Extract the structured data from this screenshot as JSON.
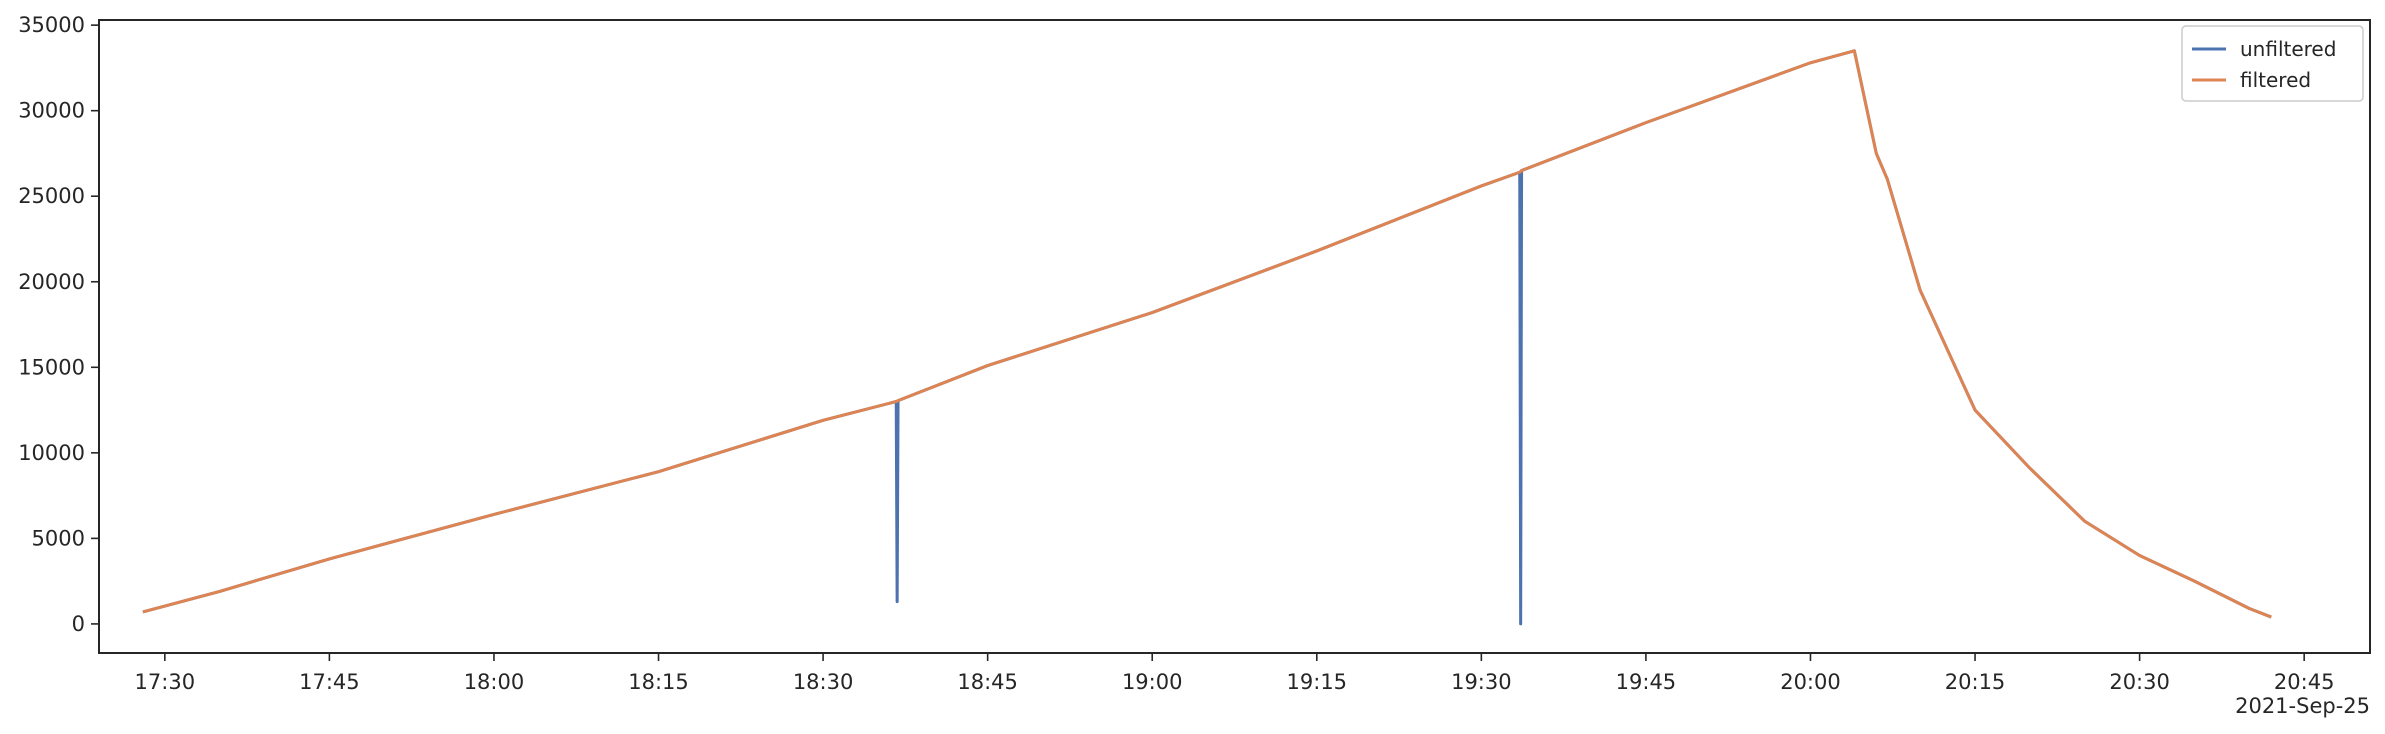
{
  "chart_data": {
    "type": "line",
    "title": "",
    "xlabel": "",
    "ylabel": "",
    "x_axis": {
      "type": "time",
      "range": [
        "17:24",
        "20:51"
      ],
      "ticks": [
        "17:30",
        "17:45",
        "18:00",
        "18:15",
        "18:30",
        "18:45",
        "19:00",
        "19:15",
        "19:30",
        "19:45",
        "20:00",
        "20:15",
        "20:30",
        "20:45"
      ],
      "offset_label": "2021-Sep-25"
    },
    "y_axis": {
      "range": [
        -1700,
        35300
      ],
      "ticks": [
        0,
        5000,
        10000,
        15000,
        20000,
        25000,
        30000,
        35000
      ]
    },
    "grid": false,
    "legend": {
      "placement": "top-right"
    },
    "series": [
      {
        "name": "unfiltered",
        "color": "#4c72b0",
        "points": [
          [
            "17:28",
            700
          ],
          [
            "17:35",
            1900
          ],
          [
            "17:45",
            3800
          ],
          [
            "18:00",
            6400
          ],
          [
            "18:15",
            8900
          ],
          [
            "18:30",
            11900
          ],
          [
            "18:36:40",
            13000
          ],
          [
            "18:36:45",
            1300
          ],
          [
            "18:36:50",
            13050
          ],
          [
            "18:45",
            15100
          ],
          [
            "19:00",
            18200
          ],
          [
            "19:15",
            21800
          ],
          [
            "19:30",
            25600
          ],
          [
            "19:33:30",
            26400
          ],
          [
            "19:33:35",
            0
          ],
          [
            "19:33:40",
            26500
          ],
          [
            "19:45",
            29300
          ],
          [
            "20:00",
            32800
          ],
          [
            "20:04",
            33500
          ],
          [
            "20:06",
            27500
          ],
          [
            "20:07",
            26000
          ],
          [
            "20:10",
            19500
          ],
          [
            "20:15",
            12500
          ],
          [
            "20:20",
            9100
          ],
          [
            "20:25",
            6000
          ],
          [
            "20:30",
            4000
          ],
          [
            "20:35",
            2500
          ],
          [
            "20:40",
            900
          ],
          [
            "20:42",
            400
          ]
        ]
      },
      {
        "name": "filtered",
        "color": "#dd8452",
        "points": [
          [
            "17:28",
            700
          ],
          [
            "17:35",
            1900
          ],
          [
            "17:45",
            3800
          ],
          [
            "18:00",
            6400
          ],
          [
            "18:15",
            8900
          ],
          [
            "18:30",
            11900
          ],
          [
            "18:36:40",
            13000
          ],
          [
            "18:36:50",
            13050
          ],
          [
            "18:45",
            15100
          ],
          [
            "19:00",
            18200
          ],
          [
            "19:15",
            21800
          ],
          [
            "19:30",
            25600
          ],
          [
            "19:33:30",
            26400
          ],
          [
            "19:33:40",
            26500
          ],
          [
            "19:45",
            29300
          ],
          [
            "20:00",
            32800
          ],
          [
            "20:04",
            33500
          ],
          [
            "20:06",
            27500
          ],
          [
            "20:07",
            26000
          ],
          [
            "20:10",
            19500
          ],
          [
            "20:15",
            12500
          ],
          [
            "20:20",
            9100
          ],
          [
            "20:25",
            6000
          ],
          [
            "20:30",
            4000
          ],
          [
            "20:35",
            2500
          ],
          [
            "20:40",
            900
          ],
          [
            "20:42",
            400
          ]
        ]
      }
    ]
  }
}
